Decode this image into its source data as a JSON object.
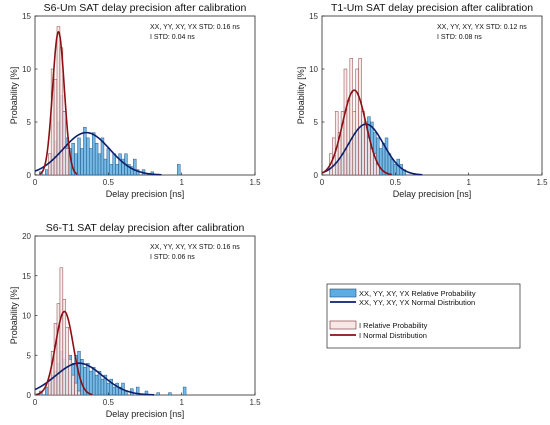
{
  "figure": {
    "legend": [
      {
        "label": "XX, YY, XY, YX Relative Probability",
        "kind": "bar",
        "fill": "#5dade2",
        "stroke": "#1f4e79"
      },
      {
        "label": "XX, YY, XY, YX Normal Distribution",
        "kind": "line",
        "color": "#0b1f6b"
      },
      {
        "label": "I Relative Probability",
        "kind": "bar",
        "fill": "#f7e8e8",
        "stroke": "#7a2a2a"
      },
      {
        "label": "I Normal Distribution",
        "kind": "line",
        "color": "#8b0f14"
      }
    ]
  },
  "chart_data": [
    {
      "type": "bar",
      "title": "S6-Um SAT delay precision after calibration",
      "xlabel": "Delay precision [ns]",
      "ylabel": "Probability [%]",
      "xlim": [
        0,
        1.5
      ],
      "ylim": [
        0,
        15
      ],
      "xticks": [
        0,
        0.5,
        1,
        1.5
      ],
      "yticks": [
        0,
        5,
        10,
        15
      ],
      "annotations": [
        "XX, YY, XY, YX STD: 0.16 ns",
        "I STD: 0.04 ns"
      ],
      "bin_width": 0.02,
      "series": [
        {
          "name": "XX, YY, XY, YX Relative Probability",
          "kind": "bar",
          "x": [
            0.04,
            0.08,
            0.1,
            0.12,
            0.14,
            0.16,
            0.18,
            0.2,
            0.22,
            0.24,
            0.26,
            0.28,
            0.3,
            0.32,
            0.34,
            0.36,
            0.38,
            0.4,
            0.42,
            0.44,
            0.46,
            0.48,
            0.5,
            0.52,
            0.54,
            0.56,
            0.58,
            0.6,
            0.62,
            0.64,
            0.66,
            0.68,
            0.7,
            0.74,
            0.8,
            0.98
          ],
          "y": [
            0.3,
            0.5,
            1.2,
            2.0,
            3.2,
            5.0,
            7.5,
            6.0,
            3.5,
            2.5,
            3.0,
            2.0,
            3.5,
            2.5,
            4.5,
            3.5,
            2.5,
            4.0,
            3.0,
            2.0,
            3.5,
            1.5,
            2.5,
            1.0,
            2.0,
            1.0,
            2.0,
            1.5,
            2.0,
            1.0,
            0.8,
            1.5,
            0.5,
            0.5,
            0.3,
            1.0
          ]
        },
        {
          "name": "I Relative Probability",
          "kind": "bar",
          "x": [
            0.1,
            0.12,
            0.14,
            0.16,
            0.18,
            0.2,
            0.22
          ],
          "y": [
            2.0,
            10.0,
            9.0,
            14.0,
            12.0,
            6.0,
            2.5
          ]
        },
        {
          "name": "XX, YY, XY, YX Normal Distribution",
          "kind": "normal",
          "mean": 0.35,
          "std": 0.16,
          "peak": 4.0
        },
        {
          "name": "I Normal Distribution",
          "kind": "normal",
          "mean": 0.16,
          "std": 0.04,
          "peak": 13.5
        }
      ]
    },
    {
      "type": "bar",
      "title": "T1-Um SAT delay precision after calibration",
      "xlabel": "Delay precision [ns]",
      "ylabel": "Probability [%]",
      "xlim": [
        0,
        1.5
      ],
      "ylim": [
        0,
        15
      ],
      "xticks": [
        0,
        0.5,
        1,
        1.5
      ],
      "yticks": [
        0,
        5,
        10,
        15
      ],
      "annotations": [
        "XX, YY, XY, YX STD: 0.12 ns",
        "I STD: 0.08 ns"
      ],
      "bin_width": 0.02,
      "series": [
        {
          "name": "XX, YY, XY, YX Relative Probability",
          "kind": "bar",
          "x": [
            0.06,
            0.1,
            0.12,
            0.14,
            0.16,
            0.18,
            0.2,
            0.22,
            0.24,
            0.26,
            0.28,
            0.3,
            0.32,
            0.34,
            0.36,
            0.38,
            0.4,
            0.42,
            0.44,
            0.46,
            0.48,
            0.5,
            0.52,
            0.54,
            0.56
          ],
          "y": [
            0.5,
            1.0,
            1.5,
            2.0,
            2.5,
            2.0,
            3.0,
            3.5,
            4.0,
            4.5,
            5.0,
            4.5,
            5.5,
            5.0,
            4.0,
            3.5,
            2.5,
            3.0,
            3.5,
            2.0,
            1.5,
            1.0,
            1.5,
            1.0,
            0.5
          ]
        },
        {
          "name": "I Relative Probability",
          "kind": "bar",
          "x": [
            0.06,
            0.08,
            0.1,
            0.12,
            0.14,
            0.16,
            0.18,
            0.2,
            0.22,
            0.24,
            0.26,
            0.28,
            0.3,
            0.32,
            0.34,
            0.36,
            0.38
          ],
          "y": [
            2.0,
            3.5,
            6.0,
            4.0,
            6.0,
            10.0,
            7.0,
            11.0,
            6.0,
            10.0,
            11.0,
            6.0,
            5.0,
            3.5,
            2.5,
            2.0,
            1.0
          ]
        },
        {
          "name": "XX, YY, XY, YX Normal Distribution",
          "kind": "normal",
          "mean": 0.3,
          "std": 0.12,
          "peak": 4.8
        },
        {
          "name": "I Normal Distribution",
          "kind": "normal",
          "mean": 0.22,
          "std": 0.08,
          "peak": 8.0
        }
      ]
    },
    {
      "type": "bar",
      "title": "S6-T1 SAT delay precision after calibration",
      "xlabel": "Delay precision [ns]",
      "ylabel": "Probability [%]",
      "xlim": [
        0,
        1.5
      ],
      "ylim": [
        0,
        20
      ],
      "xticks": [
        0,
        0.5,
        1,
        1.5
      ],
      "yticks": [
        0,
        5,
        10,
        15,
        20
      ],
      "annotations": [
        "XX, YY, XY, YX STD: 0.16 ns",
        "I STD: 0.06 ns"
      ],
      "bin_width": 0.02,
      "series": [
        {
          "name": "XX, YY, XY, YX Relative Probability",
          "kind": "bar",
          "x": [
            0.04,
            0.08,
            0.1,
            0.12,
            0.14,
            0.16,
            0.18,
            0.2,
            0.22,
            0.24,
            0.26,
            0.28,
            0.3,
            0.32,
            0.34,
            0.36,
            0.38,
            0.4,
            0.42,
            0.44,
            0.46,
            0.48,
            0.5,
            0.52,
            0.54,
            0.56,
            0.58,
            0.6,
            0.62,
            0.66,
            0.7,
            0.76,
            0.84,
            0.92,
            1.02
          ],
          "y": [
            0.5,
            1.0,
            1.5,
            2.5,
            3.0,
            4.0,
            5.5,
            4.5,
            3.5,
            5.0,
            4.0,
            5.0,
            5.5,
            4.5,
            3.5,
            4.0,
            3.0,
            3.5,
            2.5,
            3.0,
            2.0,
            2.5,
            1.5,
            2.0,
            1.0,
            1.5,
            1.0,
            1.5,
            0.5,
            0.8,
            1.0,
            0.5,
            0.3,
            0.3,
            1.0
          ]
        },
        {
          "name": "I Relative Probability",
          "kind": "bar",
          "x": [
            0.1,
            0.12,
            0.14,
            0.16,
            0.18,
            0.2,
            0.22,
            0.24,
            0.26,
            0.28,
            0.3
          ],
          "y": [
            2.0,
            5.5,
            9.0,
            11.5,
            16.0,
            12.0,
            8.5,
            4.5,
            2.5,
            1.5,
            0.5
          ]
        },
        {
          "name": "XX, YY, XY, YX Normal Distribution",
          "kind": "normal",
          "mean": 0.3,
          "std": 0.16,
          "peak": 4.0
        },
        {
          "name": "I Normal Distribution",
          "kind": "normal",
          "mean": 0.2,
          "std": 0.06,
          "peak": 10.5
        }
      ]
    }
  ]
}
